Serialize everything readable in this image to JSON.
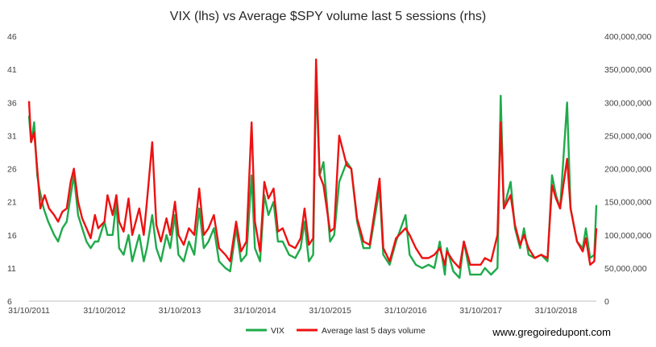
{
  "chart_data": {
    "type": "line",
    "title": "VIX (lhs) vs Average $SPY volume last 5 sessions (rhs)",
    "xlabel": "",
    "ylabel_left": "",
    "ylabel_right": "",
    "x_tick_labels": [
      "31/10/2011",
      "31/10/2012",
      "31/10/2013",
      "31/10/2014",
      "31/10/2015",
      "31/10/2016",
      "31/10/2017",
      "31/10/2018"
    ],
    "x_range": [
      "2011-10-31",
      "2019-05-15"
    ],
    "y_left_ticks": [
      "6",
      "11",
      "16",
      "21",
      "26",
      "31",
      "36",
      "41",
      "46"
    ],
    "y_left_range": [
      6,
      46
    ],
    "y_right_ticks": [
      "0",
      "50,000,000",
      "100,000,000",
      "150,000,000",
      "200,000,000",
      "250,000,000",
      "300,000,000",
      "350,000,000",
      "400,000,000"
    ],
    "y_right_range": [
      0,
      400000000
    ],
    "grid": false,
    "legend_position": "bottom",
    "series": [
      {
        "name": "VIX",
        "axis": "left",
        "color": "#1faa4a",
        "points": [
          [
            "2011-10-31",
            34
          ],
          [
            "2011-11-10",
            30
          ],
          [
            "2011-11-25",
            33
          ],
          [
            "2011-12-10",
            25
          ],
          [
            "2011-12-20",
            23
          ],
          [
            "2012-01-10",
            20
          ],
          [
            "2012-02-01",
            18
          ],
          [
            "2012-03-01",
            16
          ],
          [
            "2012-03-20",
            15
          ],
          [
            "2012-04-10",
            17
          ],
          [
            "2012-05-01",
            18
          ],
          [
            "2012-05-20",
            22
          ],
          [
            "2012-06-05",
            25
          ],
          [
            "2012-06-25",
            19
          ],
          [
            "2012-07-15",
            17
          ],
          [
            "2012-08-05",
            15
          ],
          [
            "2012-08-25",
            14
          ],
          [
            "2012-09-15",
            15
          ],
          [
            "2012-10-01",
            15
          ],
          [
            "2012-10-31",
            18
          ],
          [
            "2012-11-15",
            16
          ],
          [
            "2012-12-10",
            16
          ],
          [
            "2012-12-28",
            21
          ],
          [
            "2013-01-10",
            14
          ],
          [
            "2013-02-01",
            13
          ],
          [
            "2013-02-25",
            16
          ],
          [
            "2013-03-15",
            12
          ],
          [
            "2013-04-18",
            16
          ],
          [
            "2013-05-10",
            12
          ],
          [
            "2013-05-25",
            14
          ],
          [
            "2013-06-20",
            19
          ],
          [
            "2013-07-10",
            14
          ],
          [
            "2013-08-01",
            12
          ],
          [
            "2013-08-28",
            16
          ],
          [
            "2013-09-15",
            14
          ],
          [
            "2013-10-08",
            19
          ],
          [
            "2013-10-25",
            13
          ],
          [
            "2013-11-20",
            12
          ],
          [
            "2013-12-15",
            15
          ],
          [
            "2014-01-10",
            13
          ],
          [
            "2014-02-03",
            20
          ],
          [
            "2014-02-25",
            14
          ],
          [
            "2014-03-20",
            15
          ],
          [
            "2014-04-15",
            17
          ],
          [
            "2014-05-10",
            12
          ],
          [
            "2014-06-10",
            11
          ],
          [
            "2014-07-03",
            10.5
          ],
          [
            "2014-08-01",
            17
          ],
          [
            "2014-08-25",
            12
          ],
          [
            "2014-09-20",
            13
          ],
          [
            "2014-10-15",
            25
          ],
          [
            "2014-10-31",
            14
          ],
          [
            "2014-11-25",
            12
          ],
          [
            "2014-12-16",
            22
          ],
          [
            "2015-01-05",
            19
          ],
          [
            "2015-01-30",
            21
          ],
          [
            "2015-02-20",
            15
          ],
          [
            "2015-03-15",
            15
          ],
          [
            "2015-04-15",
            13
          ],
          [
            "2015-05-15",
            12.5
          ],
          [
            "2015-06-10",
            14
          ],
          [
            "2015-06-29",
            18
          ],
          [
            "2015-07-20",
            12
          ],
          [
            "2015-08-10",
            13
          ],
          [
            "2015-08-24",
            40
          ],
          [
            "2015-09-10",
            25
          ],
          [
            "2015-09-29",
            27
          ],
          [
            "2015-10-31",
            15
          ],
          [
            "2015-11-20",
            16
          ],
          [
            "2015-12-14",
            24
          ],
          [
            "2016-01-20",
            27
          ],
          [
            "2016-02-11",
            26
          ],
          [
            "2016-03-10",
            18
          ],
          [
            "2016-04-10",
            14
          ],
          [
            "2016-05-10",
            14
          ],
          [
            "2016-06-27",
            23
          ],
          [
            "2016-07-15",
            13
          ],
          [
            "2016-08-15",
            11.5
          ],
          [
            "2016-09-15",
            15
          ],
          [
            "2016-10-31",
            19
          ],
          [
            "2016-11-20",
            13
          ],
          [
            "2016-12-20",
            11.5
          ],
          [
            "2017-01-20",
            11
          ],
          [
            "2017-02-20",
            11.5
          ],
          [
            "2017-03-20",
            11
          ],
          [
            "2017-04-15",
            15
          ],
          [
            "2017-05-10",
            10
          ],
          [
            "2017-05-20",
            14
          ],
          [
            "2017-06-20",
            10.5
          ],
          [
            "2017-07-20",
            9.5
          ],
          [
            "2017-08-10",
            15
          ],
          [
            "2017-09-10",
            10
          ],
          [
            "2017-10-31",
            10
          ],
          [
            "2017-11-20",
            11
          ],
          [
            "2017-12-20",
            10
          ],
          [
            "2018-01-20",
            11
          ],
          [
            "2018-02-05",
            37
          ],
          [
            "2018-02-20",
            20
          ],
          [
            "2018-03-25",
            24
          ],
          [
            "2018-04-15",
            17
          ],
          [
            "2018-05-10",
            14
          ],
          [
            "2018-05-29",
            17
          ],
          [
            "2018-06-20",
            13
          ],
          [
            "2018-07-20",
            12.5
          ],
          [
            "2018-08-20",
            13
          ],
          [
            "2018-09-20",
            12
          ],
          [
            "2018-10-12",
            25
          ],
          [
            "2018-10-31",
            22
          ],
          [
            "2018-11-20",
            20
          ],
          [
            "2018-12-24",
            36
          ],
          [
            "2019-01-10",
            20
          ],
          [
            "2019-02-10",
            15
          ],
          [
            "2019-03-10",
            14
          ],
          [
            "2019-03-25",
            17
          ],
          [
            "2019-04-15",
            12.5
          ],
          [
            "2019-05-05",
            13
          ],
          [
            "2019-05-15",
            20.5
          ]
        ]
      },
      {
        "name": "Average last 5 days volume",
        "axis": "right",
        "color": "#ee1111",
        "points": [
          [
            "2011-10-31",
            302000000
          ],
          [
            "2011-11-10",
            240000000
          ],
          [
            "2011-11-25",
            255000000
          ],
          [
            "2011-12-10",
            200000000
          ],
          [
            "2011-12-25",
            140000000
          ],
          [
            "2012-01-15",
            160000000
          ],
          [
            "2012-02-05",
            140000000
          ],
          [
            "2012-03-01",
            130000000
          ],
          [
            "2012-03-20",
            120000000
          ],
          [
            "2012-04-10",
            135000000
          ],
          [
            "2012-05-01",
            140000000
          ],
          [
            "2012-05-20",
            180000000
          ],
          [
            "2012-06-05",
            200000000
          ],
          [
            "2012-06-25",
            150000000
          ],
          [
            "2012-07-15",
            125000000
          ],
          [
            "2012-08-05",
            110000000
          ],
          [
            "2012-08-25",
            95000000
          ],
          [
            "2012-09-15",
            130000000
          ],
          [
            "2012-10-01",
            110000000
          ],
          [
            "2012-10-31",
            120000000
          ],
          [
            "2012-11-15",
            160000000
          ],
          [
            "2012-12-10",
            130000000
          ],
          [
            "2012-12-28",
            160000000
          ],
          [
            "2013-01-10",
            120000000
          ],
          [
            "2013-02-01",
            105000000
          ],
          [
            "2013-02-25",
            155000000
          ],
          [
            "2013-03-15",
            100000000
          ],
          [
            "2013-04-18",
            140000000
          ],
          [
            "2013-05-10",
            100000000
          ],
          [
            "2013-05-25",
            150000000
          ],
          [
            "2013-06-20",
            240000000
          ],
          [
            "2013-07-10",
            115000000
          ],
          [
            "2013-08-01",
            90000000
          ],
          [
            "2013-08-28",
            125000000
          ],
          [
            "2013-09-15",
            100000000
          ],
          [
            "2013-10-08",
            150000000
          ],
          [
            "2013-10-25",
            100000000
          ],
          [
            "2013-11-20",
            85000000
          ],
          [
            "2013-12-15",
            110000000
          ],
          [
            "2014-01-10",
            100000000
          ],
          [
            "2014-02-03",
            170000000
          ],
          [
            "2014-02-25",
            100000000
          ],
          [
            "2014-03-20",
            110000000
          ],
          [
            "2014-04-15",
            130000000
          ],
          [
            "2014-05-10",
            80000000
          ],
          [
            "2014-06-10",
            70000000
          ],
          [
            "2014-07-03",
            60000000
          ],
          [
            "2014-08-01",
            120000000
          ],
          [
            "2014-08-25",
            75000000
          ],
          [
            "2014-09-20",
            90000000
          ],
          [
            "2014-10-15",
            270000000
          ],
          [
            "2014-10-31",
            120000000
          ],
          [
            "2014-11-25",
            75000000
          ],
          [
            "2014-12-16",
            180000000
          ],
          [
            "2015-01-05",
            155000000
          ],
          [
            "2015-01-30",
            170000000
          ],
          [
            "2015-02-20",
            105000000
          ],
          [
            "2015-03-15",
            110000000
          ],
          [
            "2015-04-15",
            85000000
          ],
          [
            "2015-05-15",
            80000000
          ],
          [
            "2015-06-10",
            95000000
          ],
          [
            "2015-06-29",
            140000000
          ],
          [
            "2015-07-20",
            85000000
          ],
          [
            "2015-08-10",
            95000000
          ],
          [
            "2015-08-24",
            365000000
          ],
          [
            "2015-09-10",
            190000000
          ],
          [
            "2015-09-29",
            175000000
          ],
          [
            "2015-10-31",
            105000000
          ],
          [
            "2015-11-20",
            110000000
          ],
          [
            "2015-12-14",
            250000000
          ],
          [
            "2016-01-20",
            205000000
          ],
          [
            "2016-02-11",
            200000000
          ],
          [
            "2016-03-10",
            125000000
          ],
          [
            "2016-04-10",
            90000000
          ],
          [
            "2016-05-10",
            85000000
          ],
          [
            "2016-06-27",
            185000000
          ],
          [
            "2016-07-15",
            80000000
          ],
          [
            "2016-08-15",
            60000000
          ],
          [
            "2016-09-15",
            95000000
          ],
          [
            "2016-10-31",
            110000000
          ],
          [
            "2016-11-20",
            100000000
          ],
          [
            "2016-12-20",
            80000000
          ],
          [
            "2017-01-20",
            65000000
          ],
          [
            "2017-02-20",
            65000000
          ],
          [
            "2017-03-20",
            70000000
          ],
          [
            "2017-04-15",
            80000000
          ],
          [
            "2017-05-10",
            55000000
          ],
          [
            "2017-05-20",
            75000000
          ],
          [
            "2017-06-20",
            60000000
          ],
          [
            "2017-07-20",
            50000000
          ],
          [
            "2017-08-10",
            90000000
          ],
          [
            "2017-09-10",
            55000000
          ],
          [
            "2017-10-31",
            55000000
          ],
          [
            "2017-11-20",
            65000000
          ],
          [
            "2017-12-20",
            60000000
          ],
          [
            "2018-01-20",
            100000000
          ],
          [
            "2018-02-05",
            270000000
          ],
          [
            "2018-02-20",
            140000000
          ],
          [
            "2018-03-25",
            160000000
          ],
          [
            "2018-04-15",
            115000000
          ],
          [
            "2018-05-10",
            85000000
          ],
          [
            "2018-05-29",
            100000000
          ],
          [
            "2018-06-20",
            80000000
          ],
          [
            "2018-07-20",
            65000000
          ],
          [
            "2018-08-20",
            70000000
          ],
          [
            "2018-09-20",
            65000000
          ],
          [
            "2018-10-12",
            175000000
          ],
          [
            "2018-10-31",
            155000000
          ],
          [
            "2018-11-20",
            140000000
          ],
          [
            "2018-12-24",
            215000000
          ],
          [
            "2019-01-10",
            140000000
          ],
          [
            "2019-02-10",
            90000000
          ],
          [
            "2019-03-10",
            75000000
          ],
          [
            "2019-03-25",
            95000000
          ],
          [
            "2019-04-15",
            55000000
          ],
          [
            "2019-05-05",
            60000000
          ],
          [
            "2019-05-15",
            110000000
          ]
        ]
      }
    ]
  },
  "credit": "www.gregoiredupont.com"
}
